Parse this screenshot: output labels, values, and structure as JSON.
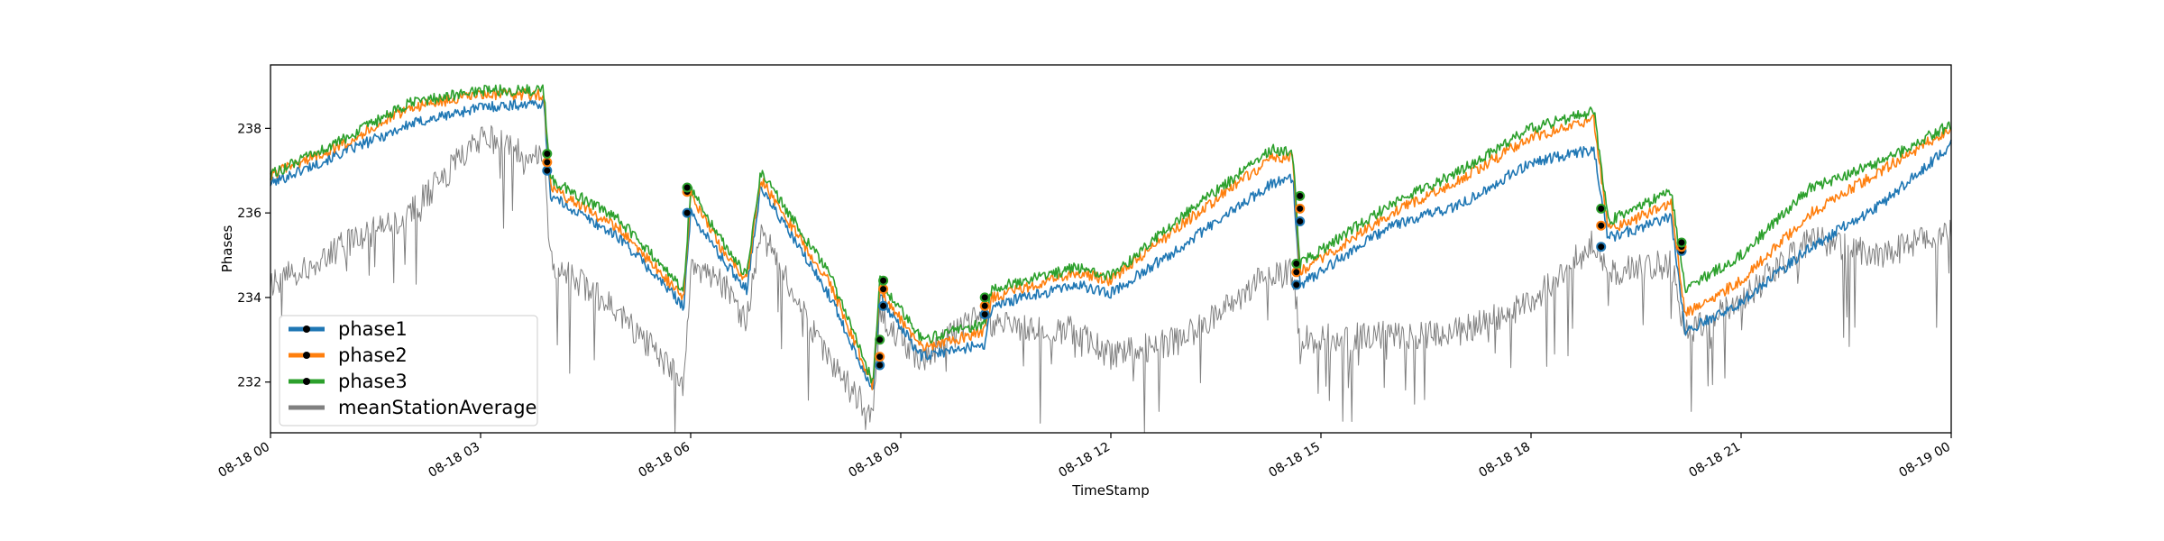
{
  "chart_data": {
    "type": "line",
    "xlabel": "TimeStamp",
    "ylabel": "Phases",
    "x_range": [
      "2023-08-18 00:00",
      "2023-08-19 00:00"
    ],
    "ylim": [
      230.8,
      239.5
    ],
    "x_ticks": [
      "08-18 00",
      "08-18 03",
      "08-18 06",
      "08-18 09",
      "08-18 12",
      "08-18 15",
      "08-18 18",
      "08-18 21",
      "08-19 00"
    ],
    "y_ticks": [
      232,
      234,
      236,
      238
    ],
    "grid": false,
    "legend_position": "lower-left",
    "x_hours": [
      0,
      1,
      2,
      3,
      3.9,
      4.0,
      5.0,
      5.9,
      6.0,
      6.5,
      6.8,
      7.0,
      8.0,
      8.6,
      8.7,
      9.3,
      10.2,
      10.3,
      11.5,
      12.0,
      13.0,
      14.3,
      14.6,
      14.7,
      16.0,
      17.0,
      18.0,
      18.9,
      19.1,
      20.0,
      20.2,
      21.0,
      22.0,
      23.0,
      24.0
    ],
    "series": [
      {
        "name": "phase1",
        "color": "#1f77b4",
        "values": [
          236.7,
          237.4,
          238.1,
          238.5,
          238.6,
          236.4,
          235.4,
          233.8,
          236.0,
          234.8,
          234.2,
          236.6,
          234.0,
          231.8,
          234.0,
          232.6,
          232.9,
          233.8,
          234.3,
          234.1,
          235.2,
          236.7,
          236.8,
          234.3,
          235.7,
          236.2,
          237.2,
          237.5,
          235.4,
          235.9,
          233.2,
          233.9,
          235.2,
          236.2,
          237.6
        ]
      },
      {
        "name": "phase2",
        "color": "#ff7f0e",
        "values": [
          236.9,
          237.6,
          238.5,
          238.8,
          238.8,
          236.6,
          235.6,
          234.0,
          236.4,
          235.0,
          234.4,
          236.8,
          234.3,
          231.9,
          234.2,
          232.8,
          233.2,
          234.0,
          234.6,
          234.4,
          235.7,
          237.3,
          237.3,
          234.6,
          236.0,
          236.8,
          237.8,
          238.2,
          235.6,
          236.2,
          233.6,
          234.4,
          236.0,
          237.0,
          238.0
        ]
      },
      {
        "name": "phase3",
        "color": "#2ca02c",
        "values": [
          236.9,
          237.7,
          238.6,
          238.9,
          238.9,
          236.8,
          235.8,
          234.2,
          236.6,
          235.2,
          234.5,
          237.0,
          234.5,
          232.0,
          234.4,
          233.0,
          233.4,
          234.2,
          234.7,
          234.5,
          235.9,
          237.5,
          237.4,
          234.8,
          236.2,
          237.0,
          238.0,
          238.4,
          235.8,
          236.5,
          234.2,
          235.0,
          236.6,
          237.2,
          238.1
        ]
      },
      {
        "name": "meanStationAverage",
        "color": "#808080",
        "values": [
          234.3,
          235.2,
          236.0,
          237.8,
          237.3,
          234.9,
          233.6,
          232.0,
          234.6,
          234.3,
          233.4,
          235.6,
          232.4,
          231.2,
          233.6,
          232.5,
          233.7,
          233.4,
          233.2,
          232.6,
          233.0,
          234.6,
          234.6,
          233.0,
          233.1,
          233.2,
          233.9,
          235.3,
          234.6,
          234.8,
          233.2,
          233.9,
          235.4,
          235.0,
          235.6
        ]
      }
    ],
    "markers": [
      {
        "x": 3.95,
        "values": [
          237.0,
          237.2,
          237.4
        ]
      },
      {
        "x": 5.95,
        "values": [
          236.0,
          236.5,
          236.6
        ]
      },
      {
        "x": 8.7,
        "values": [
          232.4,
          232.6,
          233.0
        ]
      },
      {
        "x": 8.75,
        "values": [
          233.8,
          234.2,
          234.4
        ]
      },
      {
        "x": 10.2,
        "values": [
          233.6,
          233.8,
          234.0
        ]
      },
      {
        "x": 14.65,
        "values": [
          234.3,
          234.6,
          234.8
        ]
      },
      {
        "x": 14.7,
        "values": [
          235.8,
          236.1,
          236.4
        ]
      },
      {
        "x": 19.0,
        "values": [
          235.2,
          235.7,
          236.1
        ]
      },
      {
        "x": 20.15,
        "values": [
          235.1,
          235.2,
          235.3
        ]
      }
    ]
  }
}
